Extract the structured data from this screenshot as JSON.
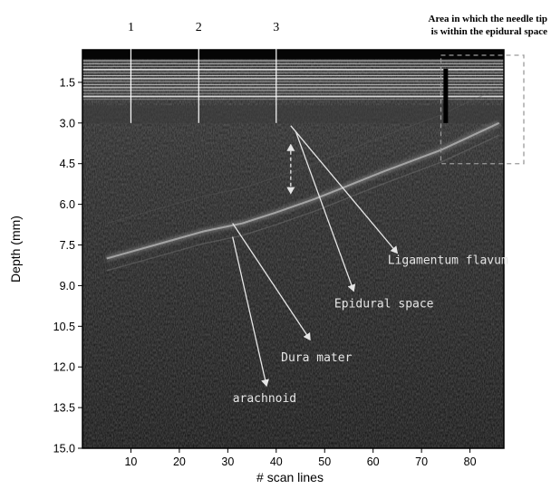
{
  "chart_data": {
    "type": "heatmap",
    "title": "",
    "xlabel": "# scan lines",
    "ylabel": "Depth (mm)",
    "xlim": [
      0,
      87
    ],
    "ylim": [
      0.3,
      15.0
    ],
    "y_inverted": true,
    "grid": false,
    "x_ticks": [
      10,
      20,
      30,
      40,
      50,
      60,
      70,
      80
    ],
    "y_ticks": [
      1.5,
      3.0,
      4.5,
      6.0,
      7.5,
      9.0,
      10.5,
      12.0,
      13.5,
      15.0
    ],
    "y_tick_labels": [
      "1.5",
      "3.0",
      "4.5",
      "6.0",
      "7.5",
      "9.0",
      "10.5",
      "12.0",
      "13.5",
      "15.0"
    ],
    "scan_line_markers": [
      {
        "label": "1",
        "x": 10
      },
      {
        "label": "2",
        "x": 24
      },
      {
        "label": "3",
        "x": 40
      }
    ],
    "bright_layer": {
      "x": [
        5,
        15,
        25,
        33,
        40,
        48,
        55,
        62,
        68,
        74,
        80,
        86
      ],
      "y": [
        8.0,
        7.5,
        7.0,
        6.7,
        6.3,
        5.8,
        5.3,
        4.8,
        4.4,
        4.0,
        3.5,
        3.0
      ]
    },
    "needle": {
      "x": 75,
      "y_range": [
        1.0,
        3.0
      ]
    },
    "annotations": [
      {
        "label": "Ligamentum flavum",
        "text_x": 63,
        "text_y": 8.2,
        "arrow_from": [
          43,
          3.1
        ],
        "arrow_to": [
          65,
          7.8
        ]
      },
      {
        "label": "Epidural space",
        "text_x": 52,
        "text_y": 9.8,
        "arrow_from": [
          44,
          3.3
        ],
        "arrow_to": [
          56,
          9.2
        ]
      },
      {
        "label": "Dura mater",
        "text_x": 41,
        "text_y": 11.8,
        "arrow_from": [
          31,
          6.7
        ],
        "arrow_to": [
          47,
          11.0
        ]
      },
      {
        "label": "arachnoid",
        "text_x": 31,
        "text_y": 13.3,
        "arrow_from": [
          31,
          7.2
        ],
        "arrow_to": [
          38,
          12.7
        ]
      }
    ],
    "epidural_gap": {
      "x": 43,
      "y_range": [
        3.8,
        5.6
      ]
    },
    "highlight_region": {
      "label": "Area in which the needle tip is within the epidural space",
      "x_range": [
        74,
        87.5
      ],
      "y_range": [
        0.5,
        4.5
      ]
    }
  }
}
